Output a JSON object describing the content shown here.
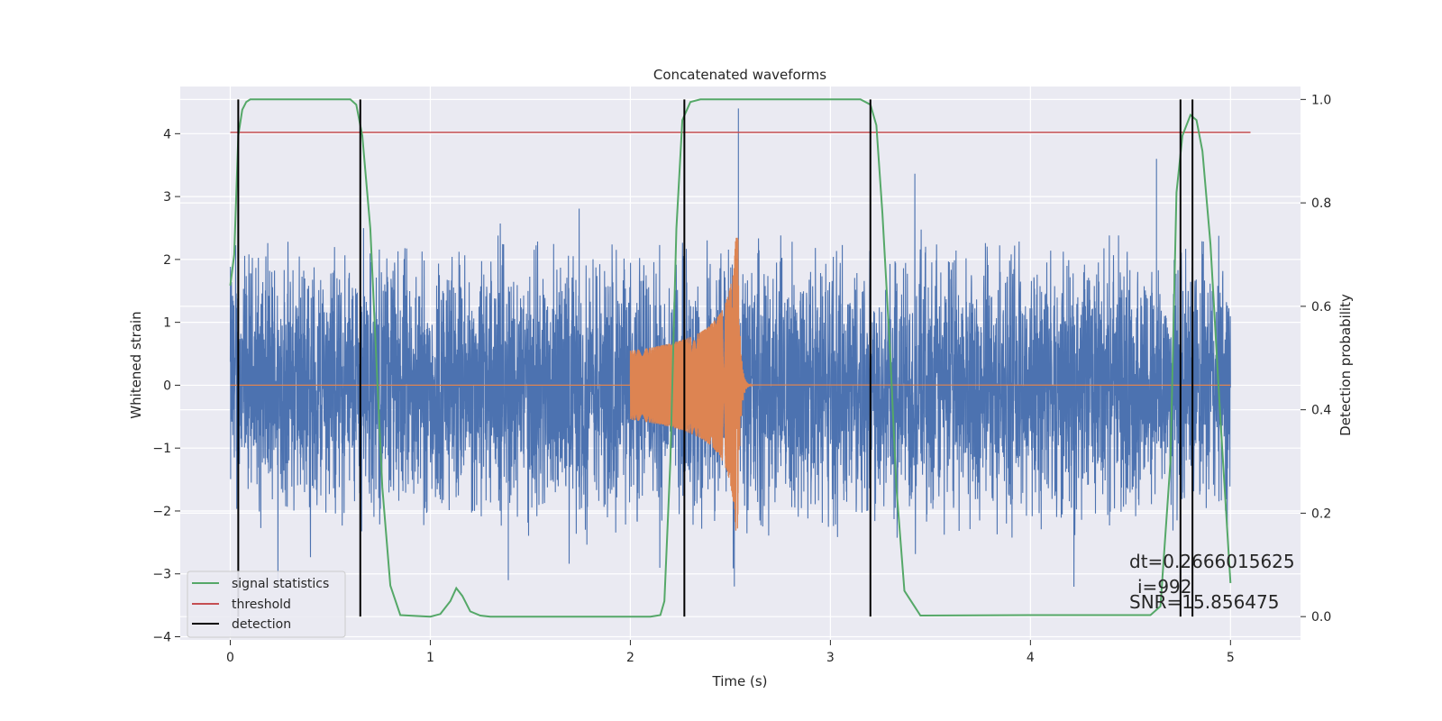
{
  "chart_data": {
    "type": "line",
    "title": "Concatenated waveforms",
    "xlabel": "Time (s)",
    "ylabel": "Whitened strain",
    "ylabel_right": "Detection probability",
    "xlim": [
      -0.25,
      5.35
    ],
    "ylim": [
      -4.05,
      4.75
    ],
    "ylim_right": [
      -0.045,
      1.025
    ],
    "xticks": [
      0,
      1,
      2,
      3,
      4,
      5
    ],
    "yticks": [
      -4,
      -3,
      -2,
      -1,
      0,
      1,
      2,
      3,
      4
    ],
    "yticks_right": [
      0.0,
      0.2,
      0.4,
      0.6,
      0.8,
      1.0
    ],
    "grid": true,
    "legend_position": "lower-left",
    "series": [
      {
        "name": "",
        "kind": "noise-strain",
        "axis": "left",
        "color": "#4c72b0",
        "x_range": [
          0,
          5
        ],
        "approx_amplitude": 2.5,
        "peak_values": [
          4.4,
          3.6,
          -3.2,
          -3.1
        ]
      },
      {
        "name": "",
        "kind": "injected-chirp",
        "axis": "left",
        "color": "#dd8452",
        "start": 2.0,
        "merger": 2.54,
        "start_amplitude": 0.55,
        "peak_amplitude": 2.35
      },
      {
        "name": "signal statistics",
        "axis": "right",
        "color": "#55a868",
        "x": [
          0.0,
          0.02,
          0.04,
          0.06,
          0.08,
          0.1,
          0.15,
          0.6,
          0.63,
          0.66,
          0.7,
          0.73,
          0.76,
          0.8,
          0.85,
          1.0,
          1.05,
          1.1,
          1.13,
          1.16,
          1.2,
          1.25,
          1.3,
          2.1,
          2.15,
          2.17,
          2.2,
          2.23,
          2.26,
          2.3,
          2.35,
          3.15,
          3.2,
          3.23,
          3.26,
          3.3,
          3.33,
          3.37,
          3.45,
          4.0,
          4.6,
          4.65,
          4.7,
          4.73,
          4.76,
          4.8,
          4.83,
          4.86,
          4.9,
          4.95,
          5.0
        ],
        "y": [
          0.64,
          0.7,
          0.93,
          0.98,
          0.995,
          1.0,
          1.0,
          1.0,
          0.99,
          0.93,
          0.75,
          0.5,
          0.25,
          0.06,
          0.003,
          0.0,
          0.005,
          0.03,
          0.055,
          0.04,
          0.01,
          0.002,
          0.0,
          0.0,
          0.003,
          0.03,
          0.3,
          0.75,
          0.96,
          0.995,
          1.0,
          1.0,
          0.99,
          0.95,
          0.78,
          0.5,
          0.25,
          0.05,
          0.002,
          0.003,
          0.003,
          0.02,
          0.3,
          0.82,
          0.93,
          0.97,
          0.96,
          0.9,
          0.72,
          0.38,
          0.065
        ]
      },
      {
        "name": "threshold",
        "axis": "left",
        "color": "#c44e52",
        "x": [
          0.0,
          5.1
        ],
        "y": [
          4.02,
          4.02
        ]
      }
    ],
    "detections": {
      "name": "detection",
      "color": "#000000",
      "x": [
        0.04,
        0.65,
        2.27,
        3.2,
        4.75,
        4.81
      ]
    },
    "annotations": [
      "dt=0.2666015625",
      "i=992",
      "SNR=15.856475"
    ]
  }
}
